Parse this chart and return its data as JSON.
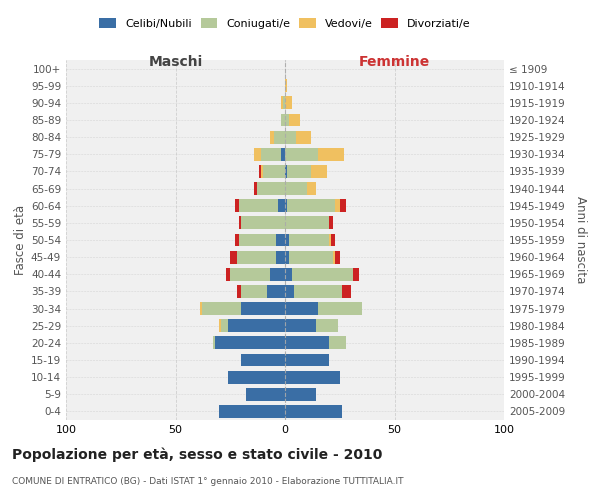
{
  "age_groups": [
    "0-4",
    "5-9",
    "10-14",
    "15-19",
    "20-24",
    "25-29",
    "30-34",
    "35-39",
    "40-44",
    "45-49",
    "50-54",
    "55-59",
    "60-64",
    "65-69",
    "70-74",
    "75-79",
    "80-84",
    "85-89",
    "90-94",
    "95-99",
    "100+"
  ],
  "birth_years": [
    "2005-2009",
    "2000-2004",
    "1995-1999",
    "1990-1994",
    "1985-1989",
    "1980-1984",
    "1975-1979",
    "1970-1974",
    "1965-1969",
    "1960-1964",
    "1955-1959",
    "1950-1954",
    "1945-1949",
    "1940-1944",
    "1935-1939",
    "1930-1934",
    "1925-1929",
    "1920-1924",
    "1915-1919",
    "1910-1914",
    "≤ 1909"
  ],
  "males": {
    "celibi": [
      30,
      18,
      26,
      20,
      32,
      26,
      20,
      8,
      7,
      4,
      4,
      0,
      3,
      0,
      0,
      2,
      0,
      0,
      0,
      0,
      0
    ],
    "coniugati": [
      0,
      0,
      0,
      0,
      1,
      3,
      18,
      12,
      18,
      18,
      17,
      20,
      18,
      13,
      10,
      9,
      5,
      2,
      1,
      0,
      0
    ],
    "vedovi": [
      0,
      0,
      0,
      0,
      0,
      1,
      1,
      0,
      0,
      0,
      0,
      0,
      0,
      0,
      1,
      3,
      2,
      0,
      1,
      0,
      0
    ],
    "divorziati": [
      0,
      0,
      0,
      0,
      0,
      0,
      0,
      2,
      2,
      3,
      2,
      1,
      2,
      1,
      1,
      0,
      0,
      0,
      0,
      0,
      0
    ]
  },
  "females": {
    "nubili": [
      26,
      14,
      25,
      20,
      20,
      14,
      15,
      4,
      3,
      2,
      2,
      0,
      1,
      0,
      1,
      0,
      0,
      0,
      0,
      0,
      0
    ],
    "coniugate": [
      0,
      0,
      0,
      0,
      8,
      10,
      20,
      22,
      28,
      20,
      18,
      20,
      22,
      10,
      11,
      15,
      5,
      2,
      0,
      0,
      0
    ],
    "vedove": [
      0,
      0,
      0,
      0,
      0,
      0,
      0,
      0,
      0,
      1,
      1,
      0,
      2,
      4,
      7,
      12,
      7,
      5,
      3,
      1,
      0
    ],
    "divorziate": [
      0,
      0,
      0,
      0,
      0,
      0,
      0,
      4,
      3,
      2,
      2,
      2,
      3,
      0,
      0,
      0,
      0,
      0,
      0,
      0,
      0
    ]
  },
  "colors": {
    "celibi_nubili": "#3A6EA5",
    "coniugati": "#B5C99A",
    "vedovi": "#F0C060",
    "divorziati": "#CC2222"
  },
  "xlim": 100,
  "title": "Popolazione per età, sesso e stato civile - 2010",
  "subtitle": "COMUNE DI ENTRATICO (BG) - Dati ISTAT 1° gennaio 2010 - Elaborazione TUTTITALIA.IT",
  "xlabel_left": "Maschi",
  "xlabel_right": "Femmine",
  "ylabel_left": "Fasce di età",
  "ylabel_right": "Anni di nascita",
  "legend_labels": [
    "Celibi/Nubili",
    "Coniugati/e",
    "Vedovi/e",
    "Divorziati/e"
  ],
  "background_color": "#ffffff",
  "plot_bg_color": "#f0f0f0",
  "grid_color": "#cccccc"
}
